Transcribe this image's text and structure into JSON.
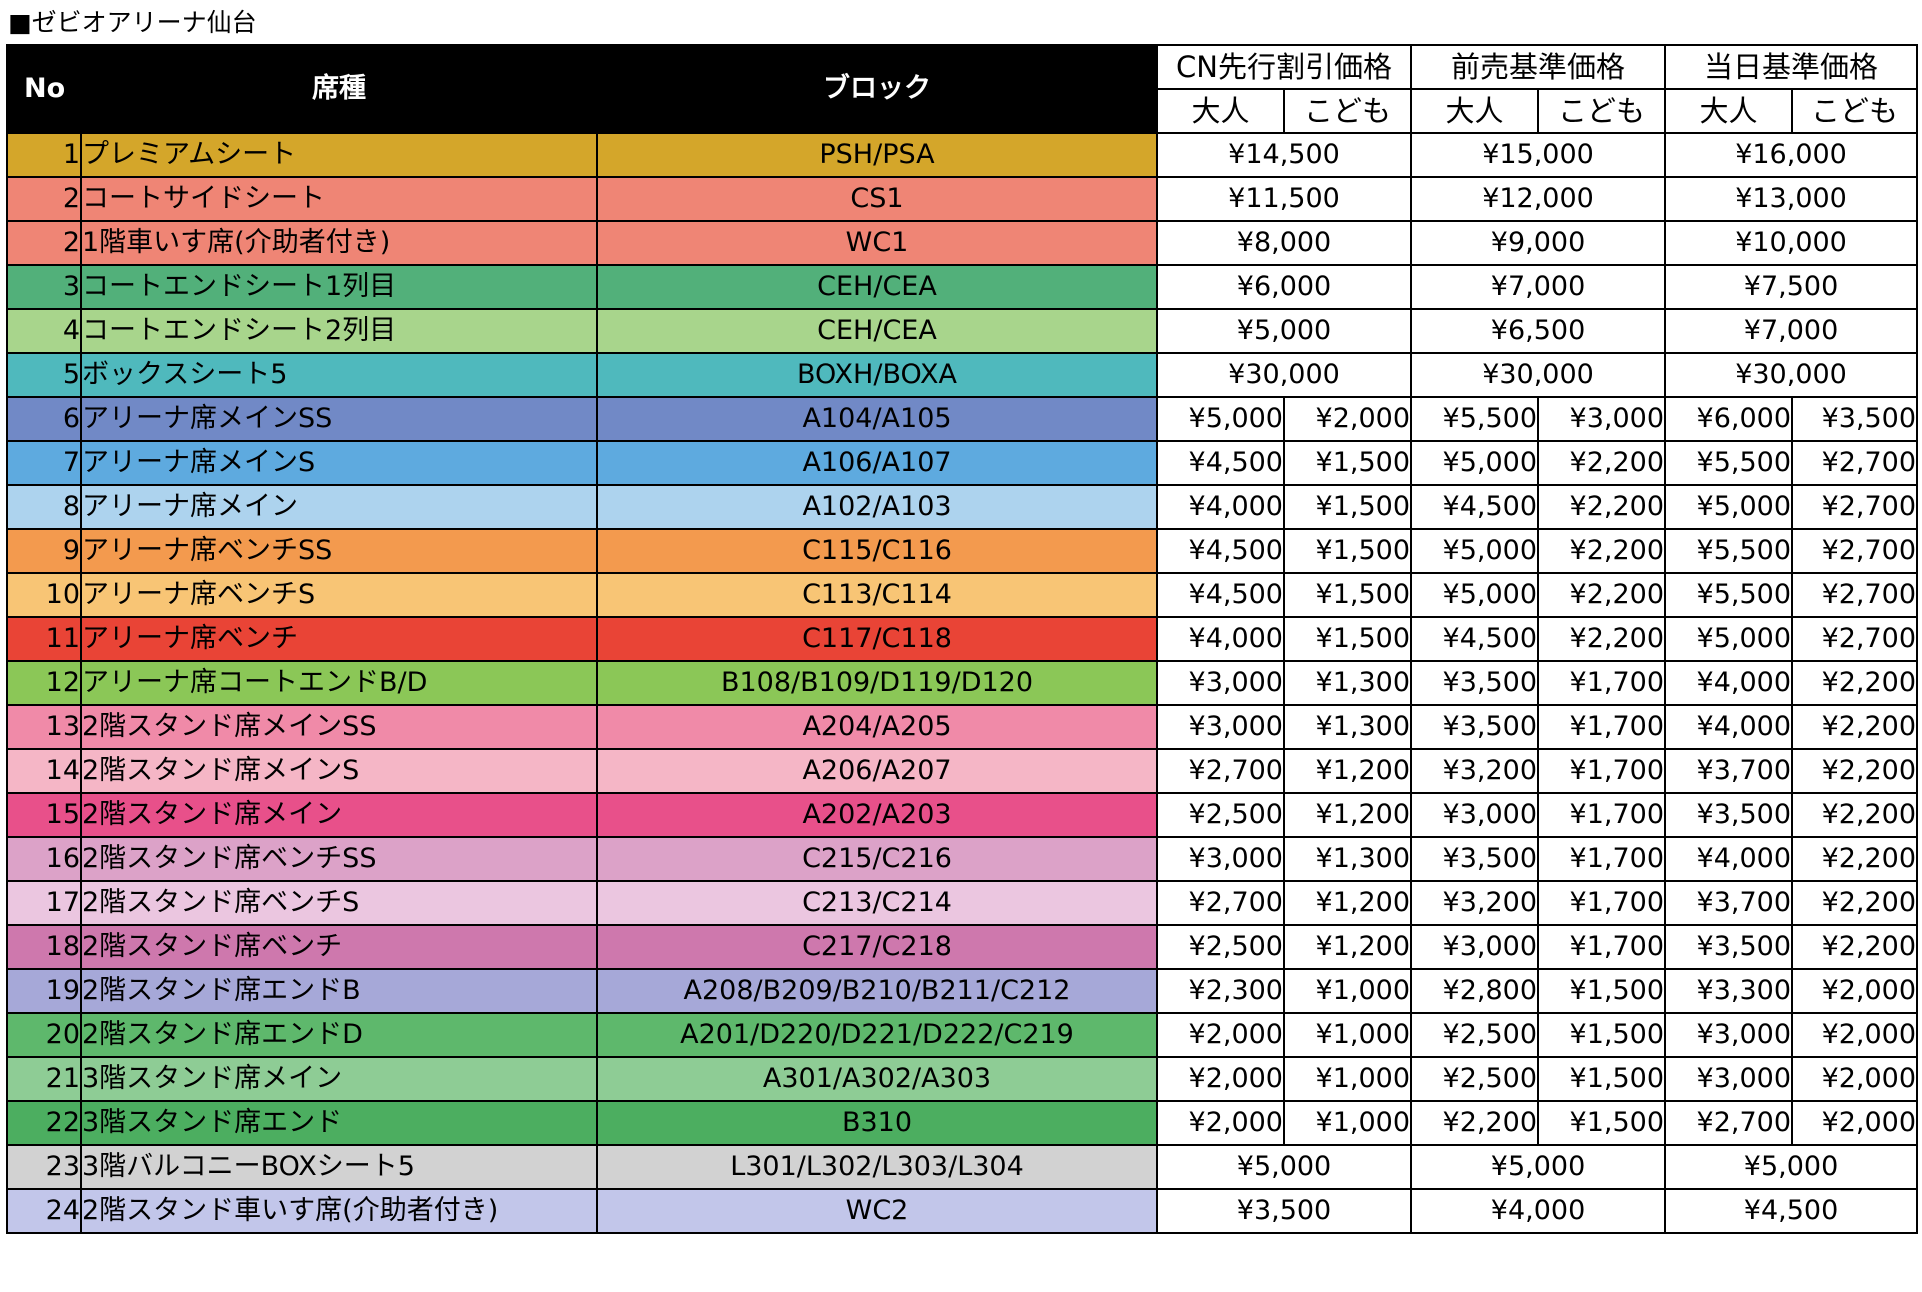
{
  "title": "■ゼビオアリーナ仙台",
  "header": {
    "no": "No",
    "seat": "席種",
    "block": "ブロック",
    "groups": [
      "CN先行割引価格",
      "前売基準価格",
      "当日基準価格"
    ],
    "adult": "大人",
    "child": "こども"
  },
  "rows": [
    {
      "no": "1",
      "seat": "プレミアムシート",
      "block": "PSH/PSA",
      "color": "#d4a62a",
      "prices": [
        "¥14,500",
        "¥15,000",
        "¥16,000"
      ]
    },
    {
      "no": "2",
      "seat": "コートサイドシート",
      "block": "CS1",
      "color": "#ef8575",
      "prices": [
        "¥11,500",
        "¥12,000",
        "¥13,000"
      ]
    },
    {
      "no": "2",
      "seat": "1階車いす席(介助者付き)",
      "block": "WC1",
      "color": "#ef8575",
      "prices": [
        "¥8,000",
        "¥9,000",
        "¥10,000"
      ]
    },
    {
      "no": "3",
      "seat": "コートエンドシート1列目",
      "block": "CEH/CEA",
      "color": "#52b07a",
      "prices": [
        "¥6,000",
        "¥7,000",
        "¥7,500"
      ]
    },
    {
      "no": "4",
      "seat": "コートエンドシート2列目",
      "block": "CEH/CEA",
      "color": "#a8d58c",
      "prices": [
        "¥5,000",
        "¥6,500",
        "¥7,000"
      ]
    },
    {
      "no": "5",
      "seat": "ボックスシート5",
      "block": "BOXH/BOXA",
      "color": "#4fb9bd",
      "prices": [
        "¥30,000",
        "¥30,000",
        "¥30,000"
      ]
    },
    {
      "no": "6",
      "seat": "アリーナ席メインSS",
      "block": "A104/A105",
      "color": "#7189c6",
      "prices": [
        "¥5,000",
        "¥2,000",
        "¥5,500",
        "¥3,000",
        "¥6,000",
        "¥3,500"
      ]
    },
    {
      "no": "7",
      "seat": "アリーナ席メインS",
      "block": "A106/A107",
      "color": "#5eaadf",
      "prices": [
        "¥4,500",
        "¥1,500",
        "¥5,000",
        "¥2,200",
        "¥5,500",
        "¥2,700"
      ]
    },
    {
      "no": "8",
      "seat": "アリーナ席メイン",
      "block": "A102/A103",
      "color": "#add3ee",
      "prices": [
        "¥4,000",
        "¥1,500",
        "¥4,500",
        "¥2,200",
        "¥5,000",
        "¥2,700"
      ]
    },
    {
      "no": "9",
      "seat": "アリーナ席ベンチSS",
      "block": "C115/C116",
      "color": "#f39a4e",
      "prices": [
        "¥4,500",
        "¥1,500",
        "¥5,000",
        "¥2,200",
        "¥5,500",
        "¥2,700"
      ]
    },
    {
      "no": "10",
      "seat": "アリーナ席ベンチS",
      "block": "C113/C114",
      "color": "#f8c575",
      "prices": [
        "¥4,500",
        "¥1,500",
        "¥5,000",
        "¥2,200",
        "¥5,500",
        "¥2,700"
      ]
    },
    {
      "no": "11",
      "seat": "アリーナ席ベンチ",
      "block": "C117/C118",
      "color": "#e94436",
      "prices": [
        "¥4,000",
        "¥1,500",
        "¥4,500",
        "¥2,200",
        "¥5,000",
        "¥2,700"
      ]
    },
    {
      "no": "12",
      "seat": "アリーナ席コートエンドB/D",
      "block": "B108/B109/D119/D120",
      "color": "#8bc757",
      "prices": [
        "¥3,000",
        "¥1,300",
        "¥3,500",
        "¥1,700",
        "¥4,000",
        "¥2,200"
      ]
    },
    {
      "no": "13",
      "seat": "2階スタンド席メインSS",
      "block": "A204/A205",
      "color": "#f08aa8",
      "prices": [
        "¥3,000",
        "¥1,300",
        "¥3,500",
        "¥1,700",
        "¥4,000",
        "¥2,200"
      ]
    },
    {
      "no": "14",
      "seat": "2階スタンド席メインS",
      "block": "A206/A207",
      "color": "#f5b6c6",
      "prices": [
        "¥2,700",
        "¥1,200",
        "¥3,200",
        "¥1,700",
        "¥3,700",
        "¥2,200"
      ]
    },
    {
      "no": "15",
      "seat": "2階スタンド席メイン",
      "block": "A202/A203",
      "color": "#e8508a",
      "prices": [
        "¥2,500",
        "¥1,200",
        "¥3,000",
        "¥1,700",
        "¥3,500",
        "¥2,200"
      ]
    },
    {
      "no": "16",
      "seat": "2階スタンド席ベンチSS",
      "block": "C215/C216",
      "color": "#dca2c8",
      "prices": [
        "¥3,000",
        "¥1,300",
        "¥3,500",
        "¥1,700",
        "¥4,000",
        "¥2,200"
      ]
    },
    {
      "no": "17",
      "seat": "2階スタンド席ベンチS",
      "block": "C213/C214",
      "color": "#ebc6e0",
      "prices": [
        "¥2,700",
        "¥1,200",
        "¥3,200",
        "¥1,700",
        "¥3,700",
        "¥2,200"
      ]
    },
    {
      "no": "18",
      "seat": "2階スタンド席ベンチ",
      "block": "C217/C218",
      "color": "#ce78ad",
      "prices": [
        "¥2,500",
        "¥1,200",
        "¥3,000",
        "¥1,700",
        "¥3,500",
        "¥2,200"
      ]
    },
    {
      "no": "19",
      "seat": "2階スタンド席エンドB",
      "block": "A208/B209/B210/B211/C212",
      "color": "#a6a8d8",
      "prices": [
        "¥2,300",
        "¥1,000",
        "¥2,800",
        "¥1,500",
        "¥3,300",
        "¥2,000"
      ]
    },
    {
      "no": "20",
      "seat": "2階スタンド席エンドD",
      "block": "A201/D220/D221/D222/C219",
      "color": "#5eb86c",
      "prices": [
        "¥2,000",
        "¥1,000",
        "¥2,500",
        "¥1,500",
        "¥3,000",
        "¥2,000"
      ]
    },
    {
      "no": "21",
      "seat": "3階スタンド席メイン",
      "block": "A301/A302/A303",
      "color": "#8ecc95",
      "prices": [
        "¥2,000",
        "¥1,000",
        "¥2,500",
        "¥1,500",
        "¥3,000",
        "¥2,000"
      ]
    },
    {
      "no": "22",
      "seat": "3階スタンド席エンド",
      "block": "B310",
      "color": "#4cae60",
      "prices": [
        "¥2,000",
        "¥1,000",
        "¥2,200",
        "¥1,500",
        "¥2,700",
        "¥2,000"
      ]
    },
    {
      "no": "23",
      "seat": "3階バルコニーBOXシート5",
      "block": "L301/L302/L303/L304",
      "color": "#d2d2d2",
      "prices": [
        "¥5,000",
        "¥5,000",
        "¥5,000"
      ]
    },
    {
      "no": "24",
      "seat": "2階スタンド車いす席(介助者付き)",
      "block": "WC2",
      "color": "#c2c6ea",
      "prices": [
        "¥3,500",
        "¥4,000",
        "¥4,500"
      ]
    }
  ]
}
